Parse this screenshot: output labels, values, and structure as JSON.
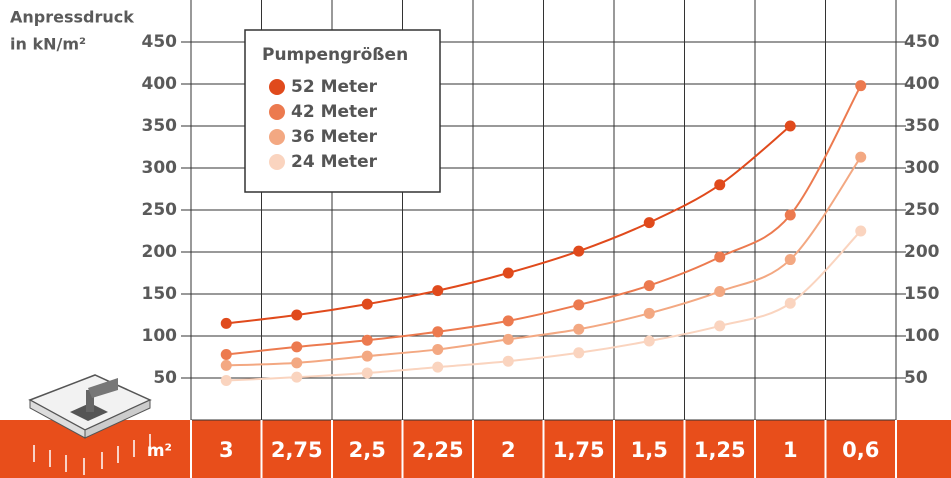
{
  "chart_data": {
    "type": "line",
    "y_label_lines": [
      "Anpressdruck",
      "in kN/m²"
    ],
    "x_label": "m²",
    "legend_title": "Pumpengrößen",
    "categories": [
      "3",
      "2,75",
      "2,5",
      "2,25",
      "2",
      "1,75",
      "1,5",
      "1,25",
      "1",
      "0,6"
    ],
    "series": [
      {
        "name": "52 Meter",
        "color": "#e04a1c",
        "values": [
          115,
          125,
          138,
          154,
          175,
          201,
          235,
          280,
          350,
          null
        ]
      },
      {
        "name": "42 Meter",
        "color": "#ec7a4f",
        "values": [
          78,
          87,
          95,
          105,
          118,
          137,
          160,
          194,
          244,
          398
        ]
      },
      {
        "name": "36 Meter",
        "color": "#f3a882",
        "values": [
          65,
          68,
          76,
          84,
          96,
          108,
          127,
          153,
          191,
          313
        ]
      },
      {
        "name": "24 Meter",
        "color": "#fad4bf",
        "values": [
          47,
          51,
          56,
          63,
          70,
          80,
          94,
          112,
          139,
          225
        ]
      }
    ],
    "ylim": [
      0,
      500
    ],
    "yticks": [
      50,
      100,
      150,
      200,
      250,
      300,
      350,
      400,
      450
    ],
    "grid": true
  }
}
